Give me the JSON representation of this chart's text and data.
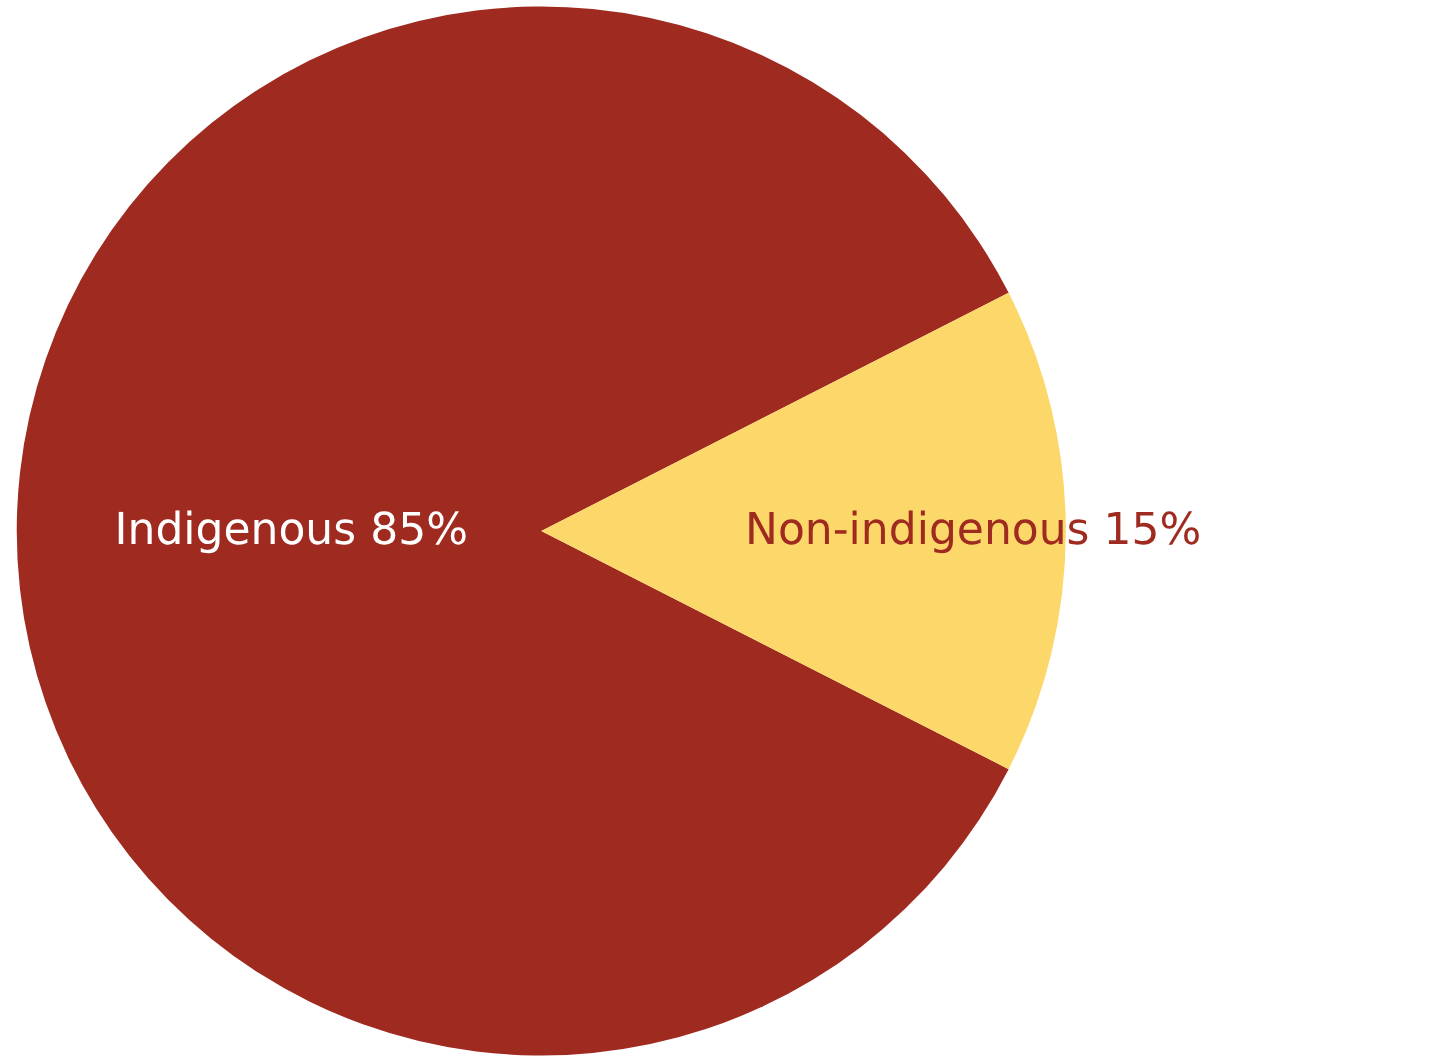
{
  "chart_data": {
    "type": "pie",
    "categories": [
      "Indigenous",
      "Non-indigenous"
    ],
    "values": [
      85,
      15
    ],
    "value_labels": [
      "85%",
      "15%"
    ],
    "colors": [
      "#9e2a20",
      "#fcd86a"
    ]
  }
}
